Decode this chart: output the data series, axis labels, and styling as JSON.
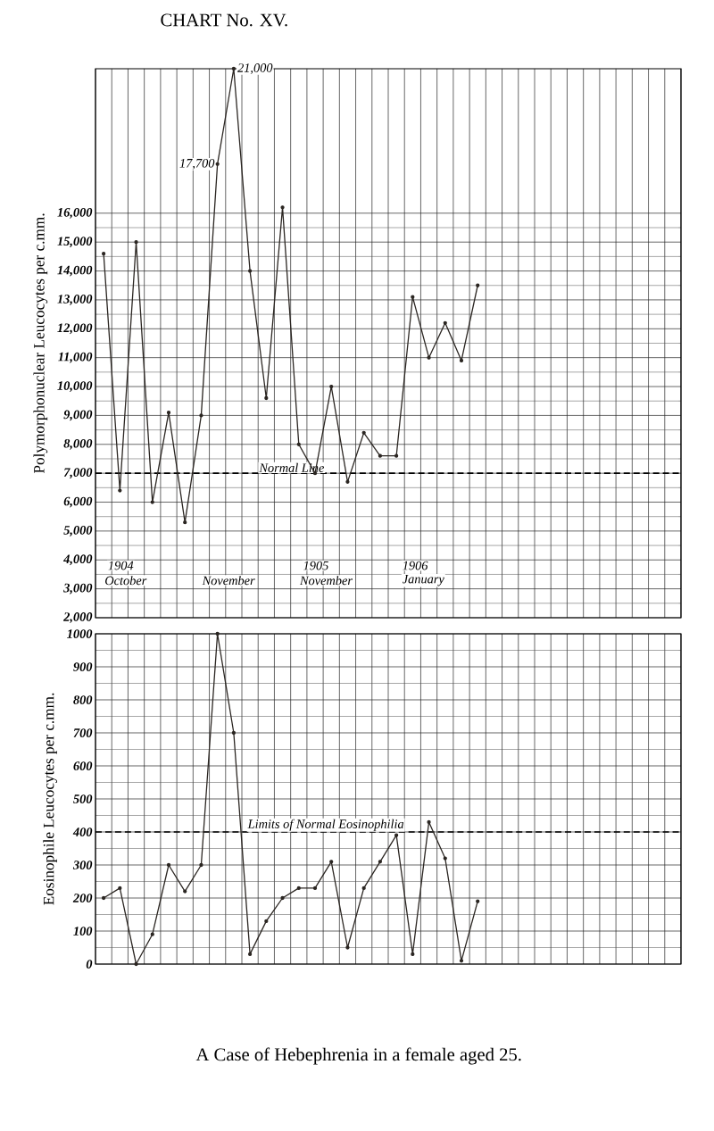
{
  "chart_data": [
    {
      "type": "line",
      "title": "CHART No. XV.",
      "ylabel": "Polymorphonuclear Leucocytes per c.mm.",
      "categories": [
        null,
        null,
        null,
        null,
        null,
        null,
        null,
        null,
        null,
        null,
        null,
        null,
        null,
        null,
        null,
        null,
        null,
        null,
        null,
        null,
        null,
        null,
        null,
        null,
        null,
        null,
        null,
        null,
        null,
        null,
        null,
        null,
        null,
        null,
        null,
        null
      ],
      "values": [
        14600,
        6400,
        15000,
        6000,
        9100,
        5300,
        9000,
        17700,
        21000,
        14000,
        9600,
        16200,
        8000,
        7000,
        10000,
        6700,
        8400,
        7600,
        7600,
        13100,
        11000,
        12200,
        10900,
        13500,
        null,
        null,
        null,
        null,
        null,
        null,
        null,
        null,
        null,
        null,
        null,
        null
      ],
      "color": "#2b2622",
      "ylim": [
        2000,
        21000
      ],
      "yticks": [
        {
          "value": 2000,
          "label": "2,000"
        },
        {
          "value": 3000,
          "label": "3,000"
        },
        {
          "value": 4000,
          "label": "4,000"
        },
        {
          "value": 5000,
          "label": "5,000"
        },
        {
          "value": 6000,
          "label": "6,000"
        },
        {
          "value": 7000,
          "label": "7,000"
        },
        {
          "value": 8000,
          "label": "8,000"
        },
        {
          "value": 9000,
          "label": "9,000"
        },
        {
          "value": 10000,
          "label": "10,000"
        },
        {
          "value": 11000,
          "label": "11,000"
        },
        {
          "value": 12000,
          "label": "12,000"
        },
        {
          "value": 13000,
          "label": "13,000"
        },
        {
          "value": 14000,
          "label": "14,000"
        },
        {
          "value": 15000,
          "label": "15,000"
        },
        {
          "value": 16000,
          "label": "16,000"
        }
      ],
      "grid": true,
      "marker": "circle",
      "line_style": "solid",
      "tick_labels": "y",
      "ref_lines": [
        {
          "axis": "y",
          "value": 7000,
          "label": "Normal Line",
          "line_style": "dashed"
        }
      ],
      "annotations": [
        "17,700",
        "21,000",
        "1904",
        "October",
        "November",
        "1905",
        "November",
        "1906",
        "January"
      ]
    },
    {
      "type": "line",
      "ylabel": "Eosinophile Leucocytes per c.mm.",
      "categories": [
        null,
        null,
        null,
        null,
        null,
        null,
        null,
        null,
        null,
        null,
        null,
        null,
        null,
        null,
        null,
        null,
        null,
        null,
        null,
        null,
        null,
        null,
        null,
        null,
        null,
        null,
        null,
        null,
        null,
        null,
        null,
        null,
        null,
        null,
        null,
        null
      ],
      "values": [
        200,
        230,
        0,
        90,
        300,
        220,
        300,
        1000,
        700,
        30,
        130,
        200,
        230,
        230,
        310,
        50,
        230,
        310,
        390,
        30,
        430,
        320,
        10,
        190,
        null,
        null,
        null,
        null,
        null,
        null,
        null,
        null,
        null,
        null,
        null,
        null
      ],
      "color": "#2b2622",
      "ylim": [
        0,
        1000
      ],
      "yticks": [
        0,
        100,
        200,
        300,
        400,
        500,
        600,
        700,
        800,
        900,
        1000
      ],
      "grid": true,
      "marker": "circle",
      "line_style": "solid",
      "tick_labels": "y",
      "ref_lines": [
        {
          "axis": "y",
          "value": 400,
          "label": "Limits of Normal Eosinophilia",
          "line_style": "dashed"
        }
      ],
      "annotations": [
        "A Case of Hebephrenia in a female aged 25."
      ]
    }
  ]
}
